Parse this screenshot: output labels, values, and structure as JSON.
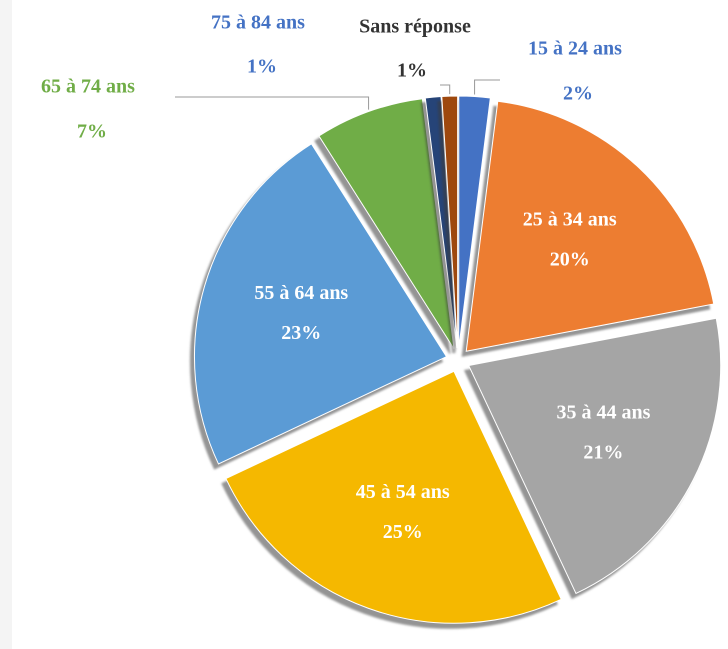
{
  "chart_data": {
    "type": "pie",
    "categories": [
      "15 à 24 ans",
      "25 à 34 ans",
      "35 à 44 ans",
      "45 à 54 ans",
      "55 à 64 ans",
      "65 à 74 ans",
      "75 à 84 ans",
      "Sans réponse"
    ],
    "values": [
      2,
      20,
      21,
      25,
      23,
      7,
      1,
      1
    ],
    "value_labels": [
      "2%",
      "20%",
      "21%",
      "25%",
      "23%",
      "7%",
      "1%",
      "1%"
    ],
    "colors": [
      "#4472c4",
      "#ed7d31",
      "#a5a5a5",
      "#f5b800",
      "#5b9bd5",
      "#70ad47",
      "#264478",
      "#9e480e"
    ]
  }
}
